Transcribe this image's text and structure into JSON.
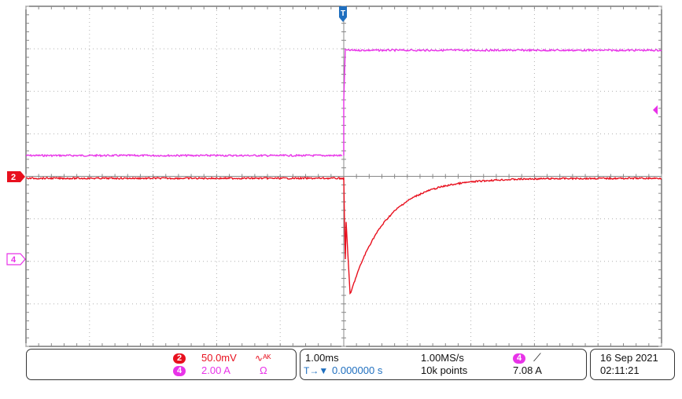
{
  "colors": {
    "ch2": "#e8101e",
    "ch4": "#e833e8",
    "trigger": "#1f6fbf",
    "grid": "#b0b0b0",
    "text": "#111111"
  },
  "markers": {
    "trigger_top": "T",
    "ch2_label": "2",
    "ch4_label": "4"
  },
  "channels": [
    {
      "num": "2",
      "scale": "50.0mV",
      "coupling_icon": "bw-limit-icon",
      "coupling_text": "ᴬᴷ"
    },
    {
      "num": "4",
      "scale": "2.00 A",
      "coupling_icon": "ohm-icon",
      "coupling_text": "Ω"
    }
  ],
  "timebase": {
    "scale": "1.00ms",
    "sample_rate": "1.00MS/s",
    "trigger_icon": "T→▼",
    "trigger_position": "0.000000 s",
    "record_length": "10k points"
  },
  "trigger": {
    "source": "4",
    "slope_icon": "rising-edge-icon",
    "level": "7.08 A"
  },
  "clock": {
    "date": "16 Sep 2021",
    "time": "02:11:21"
  },
  "waveform_data": {
    "ch2": {
      "pre_level_div": 0.0,
      "dip_min_div": -2.75,
      "recovery_tau_ms": 0.55,
      "trigger_time_ms": 0
    },
    "ch4": {
      "pre_level_div": 0.55,
      "post_level_div": 3.0,
      "step_time_ms": 0
    }
  }
}
